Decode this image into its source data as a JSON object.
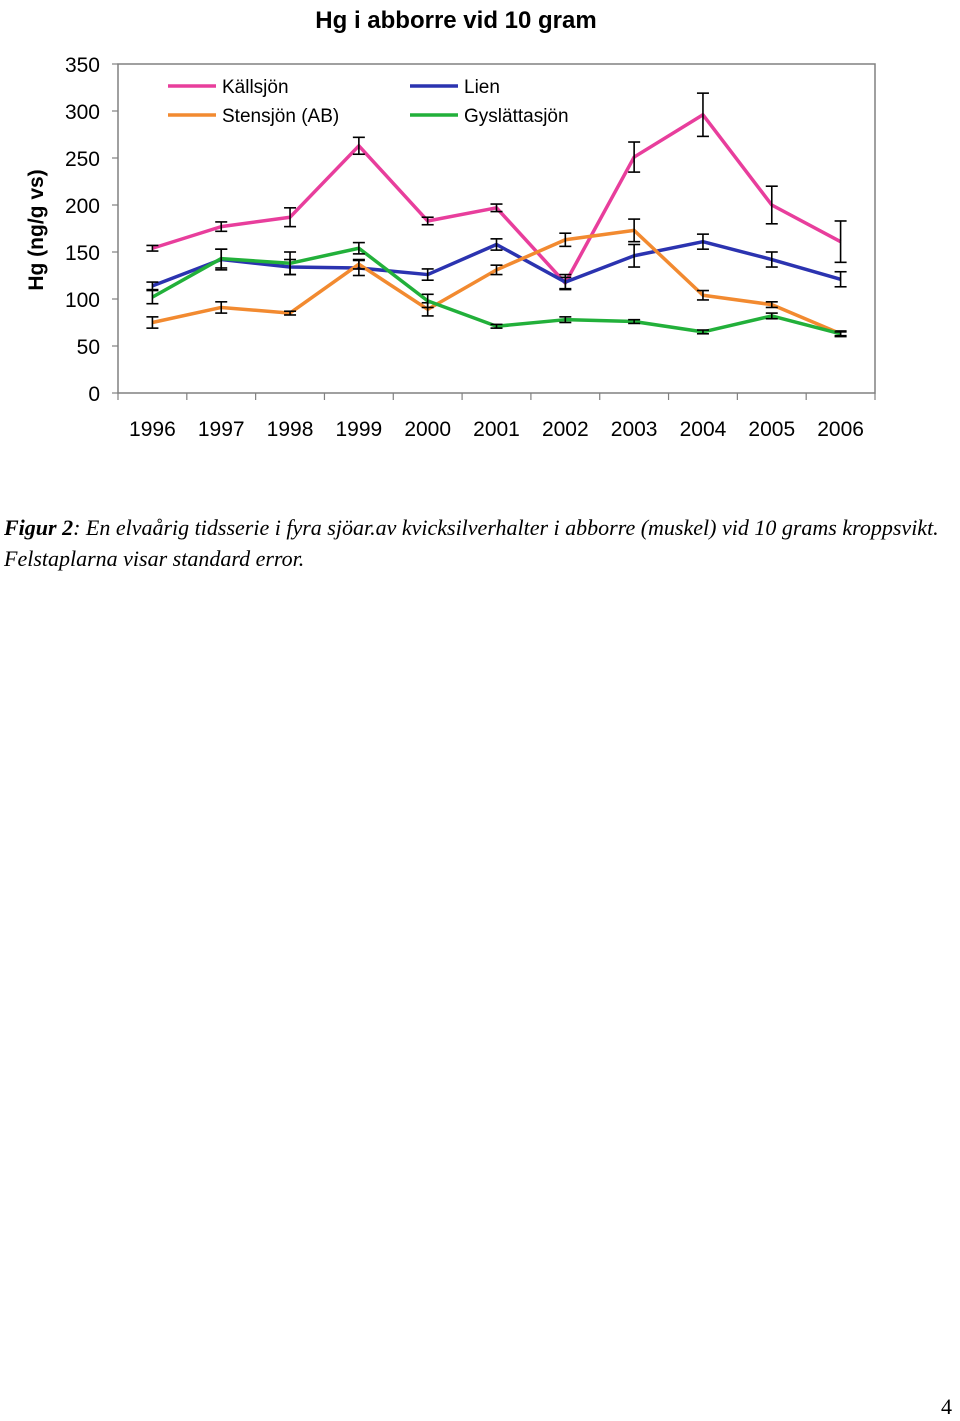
{
  "chart_data": {
    "type": "line",
    "title": "Hg i abborre vid 10 gram",
    "xlabel": "",
    "ylabel": "Hg  (ng/g vs)",
    "ylim": [
      0,
      350
    ],
    "yticks": [
      0,
      50,
      100,
      150,
      200,
      250,
      300,
      350
    ],
    "grid": false,
    "legend_position": "top-left",
    "x": [
      "1996",
      "1997",
      "1998",
      "1999",
      "2000",
      "2001",
      "2002",
      "2003",
      "2004",
      "2005",
      "2006"
    ],
    "series": [
      {
        "name": "Källsjön",
        "color": "#e83e9c",
        "values": [
          154,
          177,
          187,
          263,
          183,
          197,
          117,
          251,
          296,
          200,
          161
        ],
        "errors": [
          3,
          5,
          10,
          9,
          4,
          4,
          6,
          16,
          23,
          20,
          22
        ]
      },
      {
        "name": "Lien",
        "color": "#2b33b0",
        "values": [
          114,
          142,
          134,
          133,
          126,
          158,
          118,
          146,
          161,
          142,
          121
        ],
        "errors": [
          4,
          11,
          8,
          8,
          6,
          6,
          8,
          12,
          8,
          8,
          8
        ]
      },
      {
        "name": "Stensjön (AB)",
        "color": "#f28a30",
        "values": [
          75,
          91,
          85,
          137,
          89,
          131,
          163,
          173,
          104,
          94,
          63
        ],
        "errors": [
          6,
          6,
          2,
          5,
          7,
          5,
          7,
          12,
          5,
          3,
          3
        ]
      },
      {
        "name": "Gyslättasjön",
        "color": "#22b03a",
        "values": [
          102,
          143,
          138,
          154,
          98,
          71,
          78,
          76,
          65,
          82,
          63
        ],
        "errors": [
          7,
          10,
          12,
          6,
          7,
          2,
          3,
          2,
          2,
          3,
          2
        ]
      }
    ]
  },
  "caption": {
    "lead": "Figur 2",
    "text": ": En elvaårig tidsserie i fyra sjöar.av kvicksilverhalter i abborre (muskel) vid 10 grams kroppsvikt. Felstaplarna visar standard error."
  },
  "page_number": "4"
}
